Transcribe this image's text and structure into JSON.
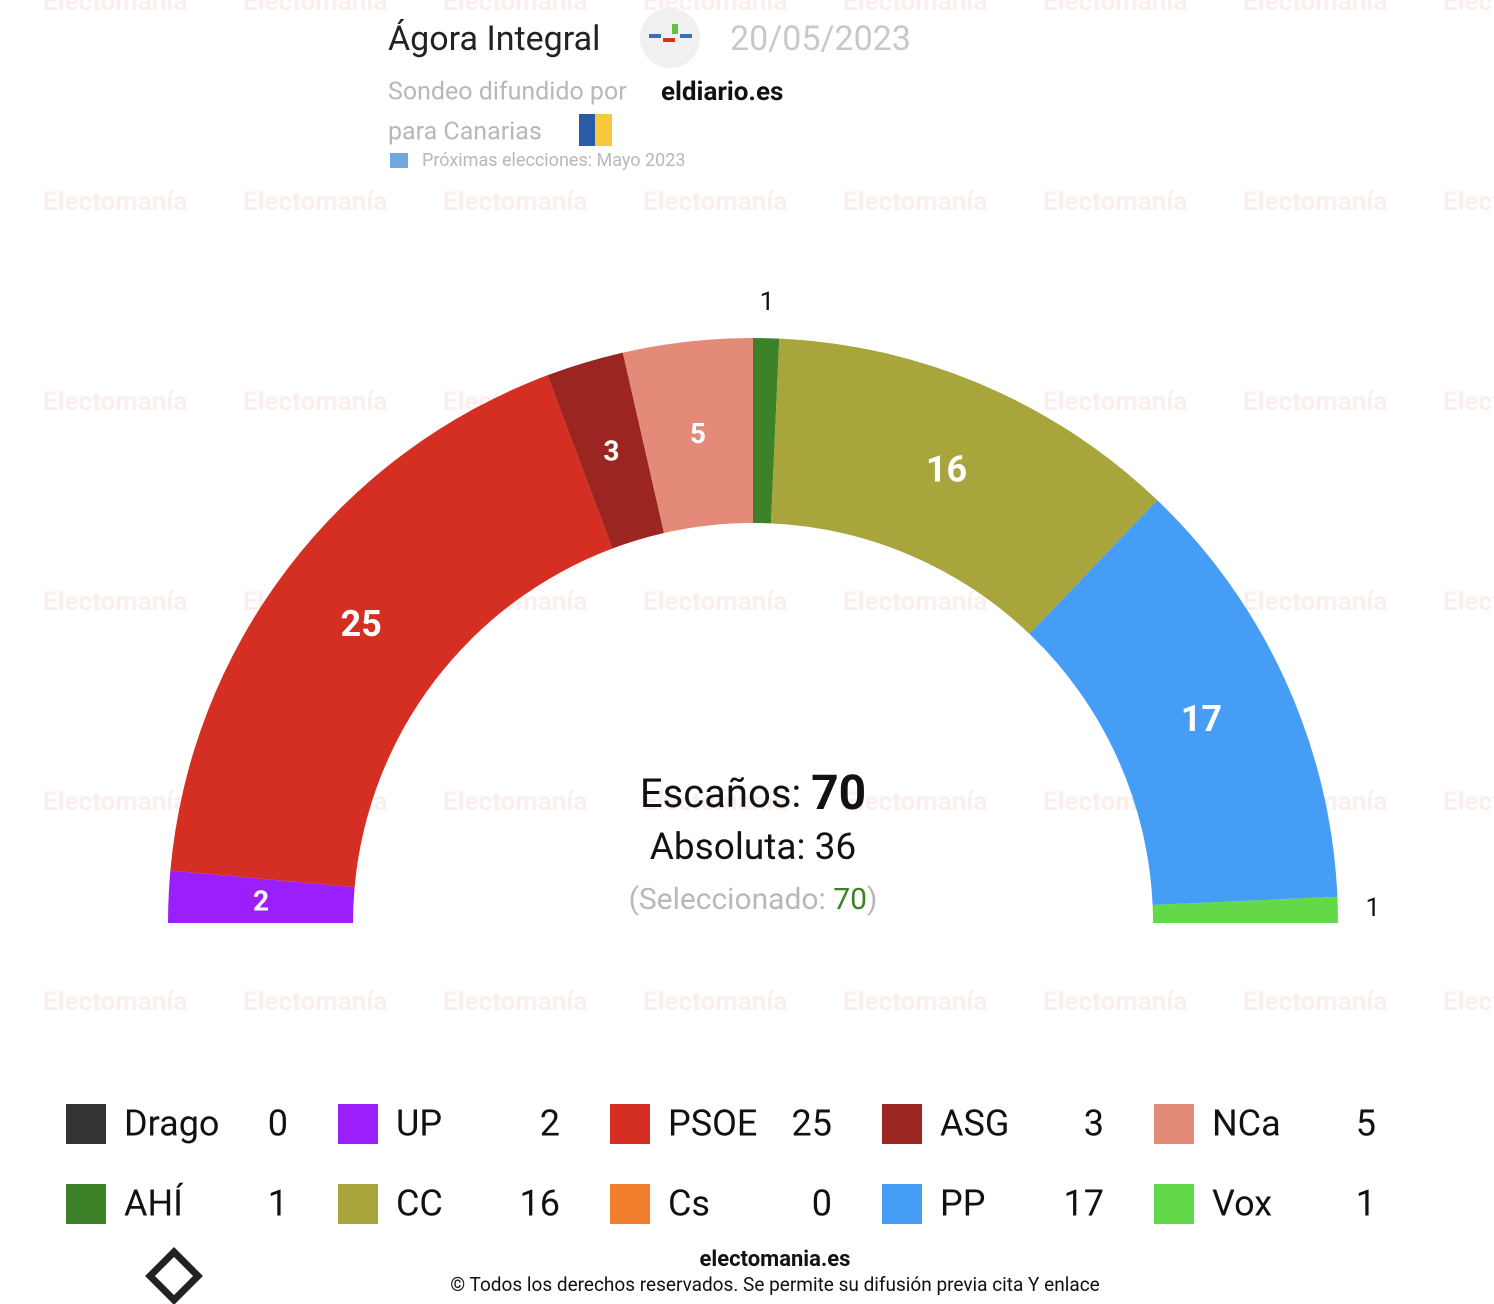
{
  "header": {
    "pollster": "Ágora Integral",
    "date": "20/05/2023",
    "published_by_label": "Sondeo difundido por",
    "publisher": "eldiario.es",
    "region": "para Canarias",
    "next_election": "Próximas elecciones: Mayo 2023"
  },
  "watermark": "Electomanía",
  "chart_data": {
    "type": "parliament",
    "series": [
      {
        "name": "Drago",
        "color": "#333333",
        "values": [
          0
        ]
      },
      {
        "name": "UP",
        "color": "#9b1ffb",
        "values": [
          2
        ]
      },
      {
        "name": "PSOE",
        "color": "#d52e22",
        "values": [
          25
        ]
      },
      {
        "name": "ASG",
        "color": "#9b2520",
        "values": [
          3
        ]
      },
      {
        "name": "NCa",
        "color": "#e38a79",
        "values": [
          5
        ]
      },
      {
        "name": "AHÍ",
        "color": "#3d8128",
        "values": [
          1
        ]
      },
      {
        "name": "CC",
        "color": "#a8a53c",
        "values": [
          16
        ]
      },
      {
        "name": "Cs",
        "color": "#f07e2c",
        "values": [
          0
        ]
      },
      {
        "name": "PP",
        "color": "#469df5",
        "values": [
          17
        ]
      },
      {
        "name": "Vox",
        "color": "#63d94a",
        "values": [
          1
        ]
      }
    ],
    "seats_label": "Escaños:",
    "total_seats": 70,
    "majority_label": "Absoluta:",
    "majority": 36,
    "selected_open": "(Seleccionado:",
    "selected": 70,
    "selected_close": ")"
  },
  "footer": {
    "site": "electomania.es",
    "copyright": "© Todos los derechos reservados. Se permite su difusión previa cita Y enlace"
  }
}
